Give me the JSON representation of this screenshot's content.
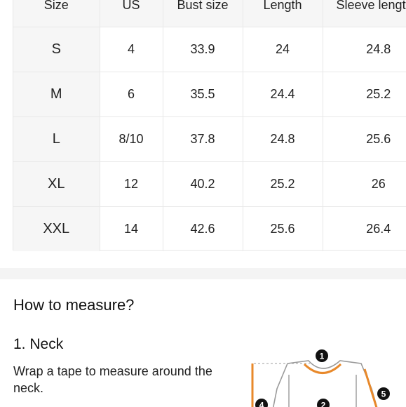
{
  "size_chart": {
    "headers": [
      "Size",
      "US",
      "Bust size",
      "Length",
      "Sleeve length"
    ],
    "rows": [
      [
        "S",
        "4",
        "33.9",
        "24",
        "24.8"
      ],
      [
        "M",
        "6",
        "35.5",
        "24.4",
        "25.2"
      ],
      [
        "L",
        "8/10",
        "37.8",
        "24.8",
        "25.6"
      ],
      [
        "XL",
        "12",
        "40.2",
        "25.2",
        "26"
      ],
      [
        "XXL",
        "14",
        "42.6",
        "25.6",
        "26.4"
      ]
    ]
  },
  "measure": {
    "title": "How to measure?",
    "items": [
      {
        "title": "1. Neck",
        "description": "Wrap a tape to measure around the neck."
      }
    ],
    "diagram_markers": [
      "1",
      "2",
      "4",
      "5"
    ],
    "accent_color": "#e8892b"
  }
}
